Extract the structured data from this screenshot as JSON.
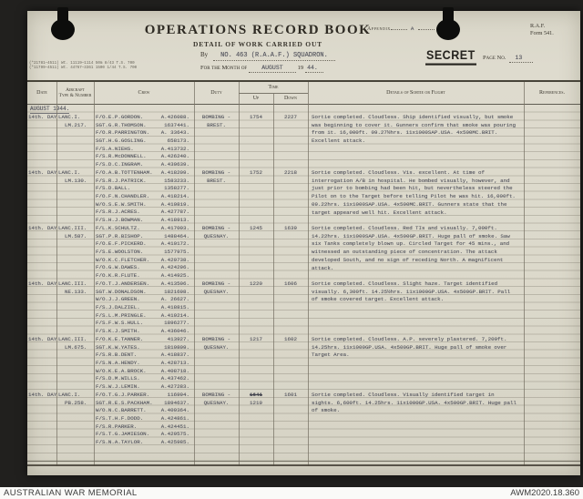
{
  "form": {
    "title": "OPERATIONS RECORD BOOK",
    "subtitle": "DETAIL OF WORK CARRIED OUT",
    "by_label": "By",
    "by_value": "NO. 463 (R.A.A.F.) SQUADRON.",
    "month_label": "For the Month of",
    "month_value": "AUGUST",
    "year_printed": "19",
    "year_typed": "44.",
    "appendix_label": "Appendix",
    "appendix_value": "A",
    "form_ref_line1": "R.A.F.",
    "form_ref_line2": "Form 541.",
    "secret_stamp": "SECRET",
    "page_label": "Page No.",
    "page_number": "13",
    "print_note_1": "(*21781—4511)  Wt. 11119—1114  50m  8/43  T.S. 700",
    "print_note_2": "(*11799—4511)  Wt. 44767—3361  1500  1/44  T.S. 700"
  },
  "table": {
    "headers": {
      "date": "Date",
      "aircraft_line1": "Aircraft",
      "aircraft_line2": "Type & Number",
      "crew": "Crew",
      "duty": "Duty",
      "time": "Time",
      "up": "Up",
      "down": "Down",
      "details": "Details of Sortie or Flight",
      "references": "References."
    },
    "month_header": "AUGUST 1944.",
    "entries": [
      {
        "date": "14th. DAY.",
        "aircraft_type": "LANC.I.",
        "aircraft_number": "LM.217.",
        "crew": [
          {
            "name": "F/O.E.P.GORDON.",
            "number": "A.426088."
          },
          {
            "name": "SGT.G.R.THOMSON.",
            "number": "1637441."
          },
          {
            "name": "F/O.R.PARRINGTON.",
            "number": "A. 33643."
          },
          {
            "name": "SGT.H.G.GOSLING.",
            "number": "658173."
          },
          {
            "name": "F/S.A.NIEHS.",
            "number": "A.413732."
          },
          {
            "name": "F/S.R.McDONNELL.",
            "number": "A.426240."
          },
          {
            "name": "F/S.D.C.INGRAM.",
            "number": "A.430639."
          }
        ],
        "duty_line1": "BOMBING -",
        "duty_line2": "BREST.",
        "time_up": "1754",
        "time_down": "2227",
        "details": "Sortie completed. Cloudless. Ship identified visually, but smoke was beginning to cover it. Gunners confirm that smoke was pouring from it. 16,000ft. 09.27½hrs. 11x1000SAP.USA. 4x500MC.BRIT. Excellent attack."
      },
      {
        "date": "14th. DAY.",
        "aircraft_type": "LANC.I.",
        "aircraft_number": "LM.130.",
        "crew": [
          {
            "name": "F/O.A.B.TOTTENHAM.",
            "number": "A.418209."
          },
          {
            "name": "F/S.R.J.PATRICK.",
            "number": "1583233."
          },
          {
            "name": "F/S.D.BALL.",
            "number": "1358277."
          },
          {
            "name": "F/O.F.N.CHANDLER.",
            "number": "A.418214."
          },
          {
            "name": "W/O.S.E.W.SMITH.",
            "number": "A.410819."
          },
          {
            "name": "F/S.R.J.ACRES.",
            "number": "A.427787."
          },
          {
            "name": "F/S.H.J.BOWMAN.",
            "number": "A.418913."
          }
        ],
        "duty_line1": "BOMBING -",
        "duty_line2": "BREST.",
        "time_up": "1752",
        "time_down": "2218",
        "details": "Sortie completed. Cloudless. Vis. excellent. At time of interrogation A/B in hospital. He bombed visually, however, and just prior to bombing had been hit, but nevertheless steered the Pilot on to the Target before telling Pilot he was hit. 16,000ft. 09.22hrs. 11x1000SAP.USA. 4x500MC.BRIT. Gunners state that the target appeared well hit. Excellent attack."
      },
      {
        "date": "14th. DAY.",
        "aircraft_type": "LANC.III.",
        "aircraft_number": "LM.587.",
        "crew": [
          {
            "name": "F/L.K.SCHULTZ.",
            "number": "A.417003."
          },
          {
            "name": "SGT.P.R.BISHOP.",
            "number": "1488464."
          },
          {
            "name": "F/O.E.F.PICKERD.",
            "number": "A.410172."
          },
          {
            "name": "F/S.E.WOOLSTON.",
            "number": "1577975."
          },
          {
            "name": "W/O.K.C.FLETCHER.",
            "number": "A.420738."
          },
          {
            "name": "F/O.G.W.DAWES.",
            "number": "A.424296."
          },
          {
            "name": "F/O.K.R.FLUTE.",
            "number": "A.414925."
          }
        ],
        "duty_line1": "BOMBING -",
        "duty_line2": "QUESNAY.",
        "time_up": "1245",
        "time_down": "1639",
        "details": "Sortie completed. Cloudless. Red TIs and visually. 7,000ft. 14.22hrs. 11x1000SAP.USA. 4x500GP.BRIT. Huge pall of smoke. Saw six Tanks completely blown up. Circled Target for 45 mins., and witnessed an outstanding piece of concentration. The attack developed South, and no sign of receding North. A magnificent attack."
      },
      {
        "date": "14th. DAY.",
        "aircraft_type": "LANC.III.",
        "aircraft_number": "NE.133.",
        "crew": [
          {
            "name": "F/O.T.J.ANDERSEN.",
            "number": "A.413506."
          },
          {
            "name": "SGT.W.DONALDSON.",
            "number": "1821698."
          },
          {
            "name": "W/O.J.J.GREEN.",
            "number": "A. 26627."
          },
          {
            "name": "F/S.J.DALZIEL.",
            "number": "A.418815."
          },
          {
            "name": "F/S.L.M.PRINGLE.",
            "number": "A.419214."
          },
          {
            "name": "F/S.F.W.S.HULL.",
            "number": "1896277."
          },
          {
            "name": "F/S.K.J.SMITH.",
            "number": "A.436046."
          }
        ],
        "duty_line1": "BOMBING -",
        "duty_line2": "QUESNAY.",
        "time_up": "1220",
        "time_down": "1606",
        "details": "Sortie completed. Cloudless. Slight haze. Target identified visually. 6,300ft. 14.25½hrs. 11x1000GP.USA. 4x500GP.BRIT. Pall of smoke covered target. Excellent attack."
      },
      {
        "date": "14th. DAY.",
        "aircraft_type": "LANC.III.",
        "aircraft_number": "LM.675.",
        "crew": [
          {
            "name": "F/O.K.E.TANNER.",
            "number": "413927."
          },
          {
            "name": "SGT.K.W.YATES.",
            "number": "1819809."
          },
          {
            "name": "F/S.R.B.DENT.",
            "number": "A.418837."
          },
          {
            "name": "F/S.N.A.HENDY.",
            "number": "A.428713."
          },
          {
            "name": "W/O.K.E.A.BROCK.",
            "number": "A.408718."
          },
          {
            "name": "F/S.D.M.WILLS.",
            "number": "A.437462."
          },
          {
            "name": "F/S.W.J.LEMIN.",
            "number": "A.427283."
          }
        ],
        "duty_line1": "BOMBING -",
        "duty_line2": "QUESNAY.",
        "time_up": "1217",
        "time_down": "1602",
        "details": "Sortie completed. Cloudless. A.P. severely plastered. 7,200ft. 14.25hrs. 11x1000GP.USA. 4x500GP.BRIT. Huge pall of smoke over Target Area."
      },
      {
        "date": "14th. DAY.",
        "aircraft_type": "LANC.I.",
        "aircraft_number": "PB.258.",
        "crew": [
          {
            "name": "F/O.T.G.J.PARKER.",
            "number": "116994."
          },
          {
            "name": "SGT.R.E.S.PACKHAM.",
            "number": "1894637."
          },
          {
            "name": "W/O.N.C.BARRETT.",
            "number": "A.409364."
          },
          {
            "name": "F/S.T.H.F.DODD.",
            "number": "A.424861."
          },
          {
            "name": "F/S.R.PARKER.",
            "number": "A.424451."
          },
          {
            "name": "F/S.T.G.JAMIESON.",
            "number": "A.429575."
          },
          {
            "name": "F/S.N.A.TAYLOR.",
            "number": "A.425985."
          }
        ],
        "duty_line1": "BOMBING -",
        "duty_line2": "QUESNAY.",
        "time_up_struck": "1641",
        "time_up": "1219",
        "time_down": "1601",
        "details": "Sortie completed. Cloudless. Visually identified target in sights. 6,600ft. 14.25hrs. 11x1000GP.USA. 4x500GP.BRIT. Huge pall of smoke."
      }
    ]
  },
  "footer": {
    "left": "AUSTRALIAN WAR MEMORIAL",
    "right": "AWM2020.18.360"
  },
  "colors": {
    "page_background": "#dcd9cb",
    "typed_ink": "#50515b",
    "printed_ink": "#332f28",
    "scan_background": "#21201e",
    "footer_background": "#fafaf8"
  }
}
